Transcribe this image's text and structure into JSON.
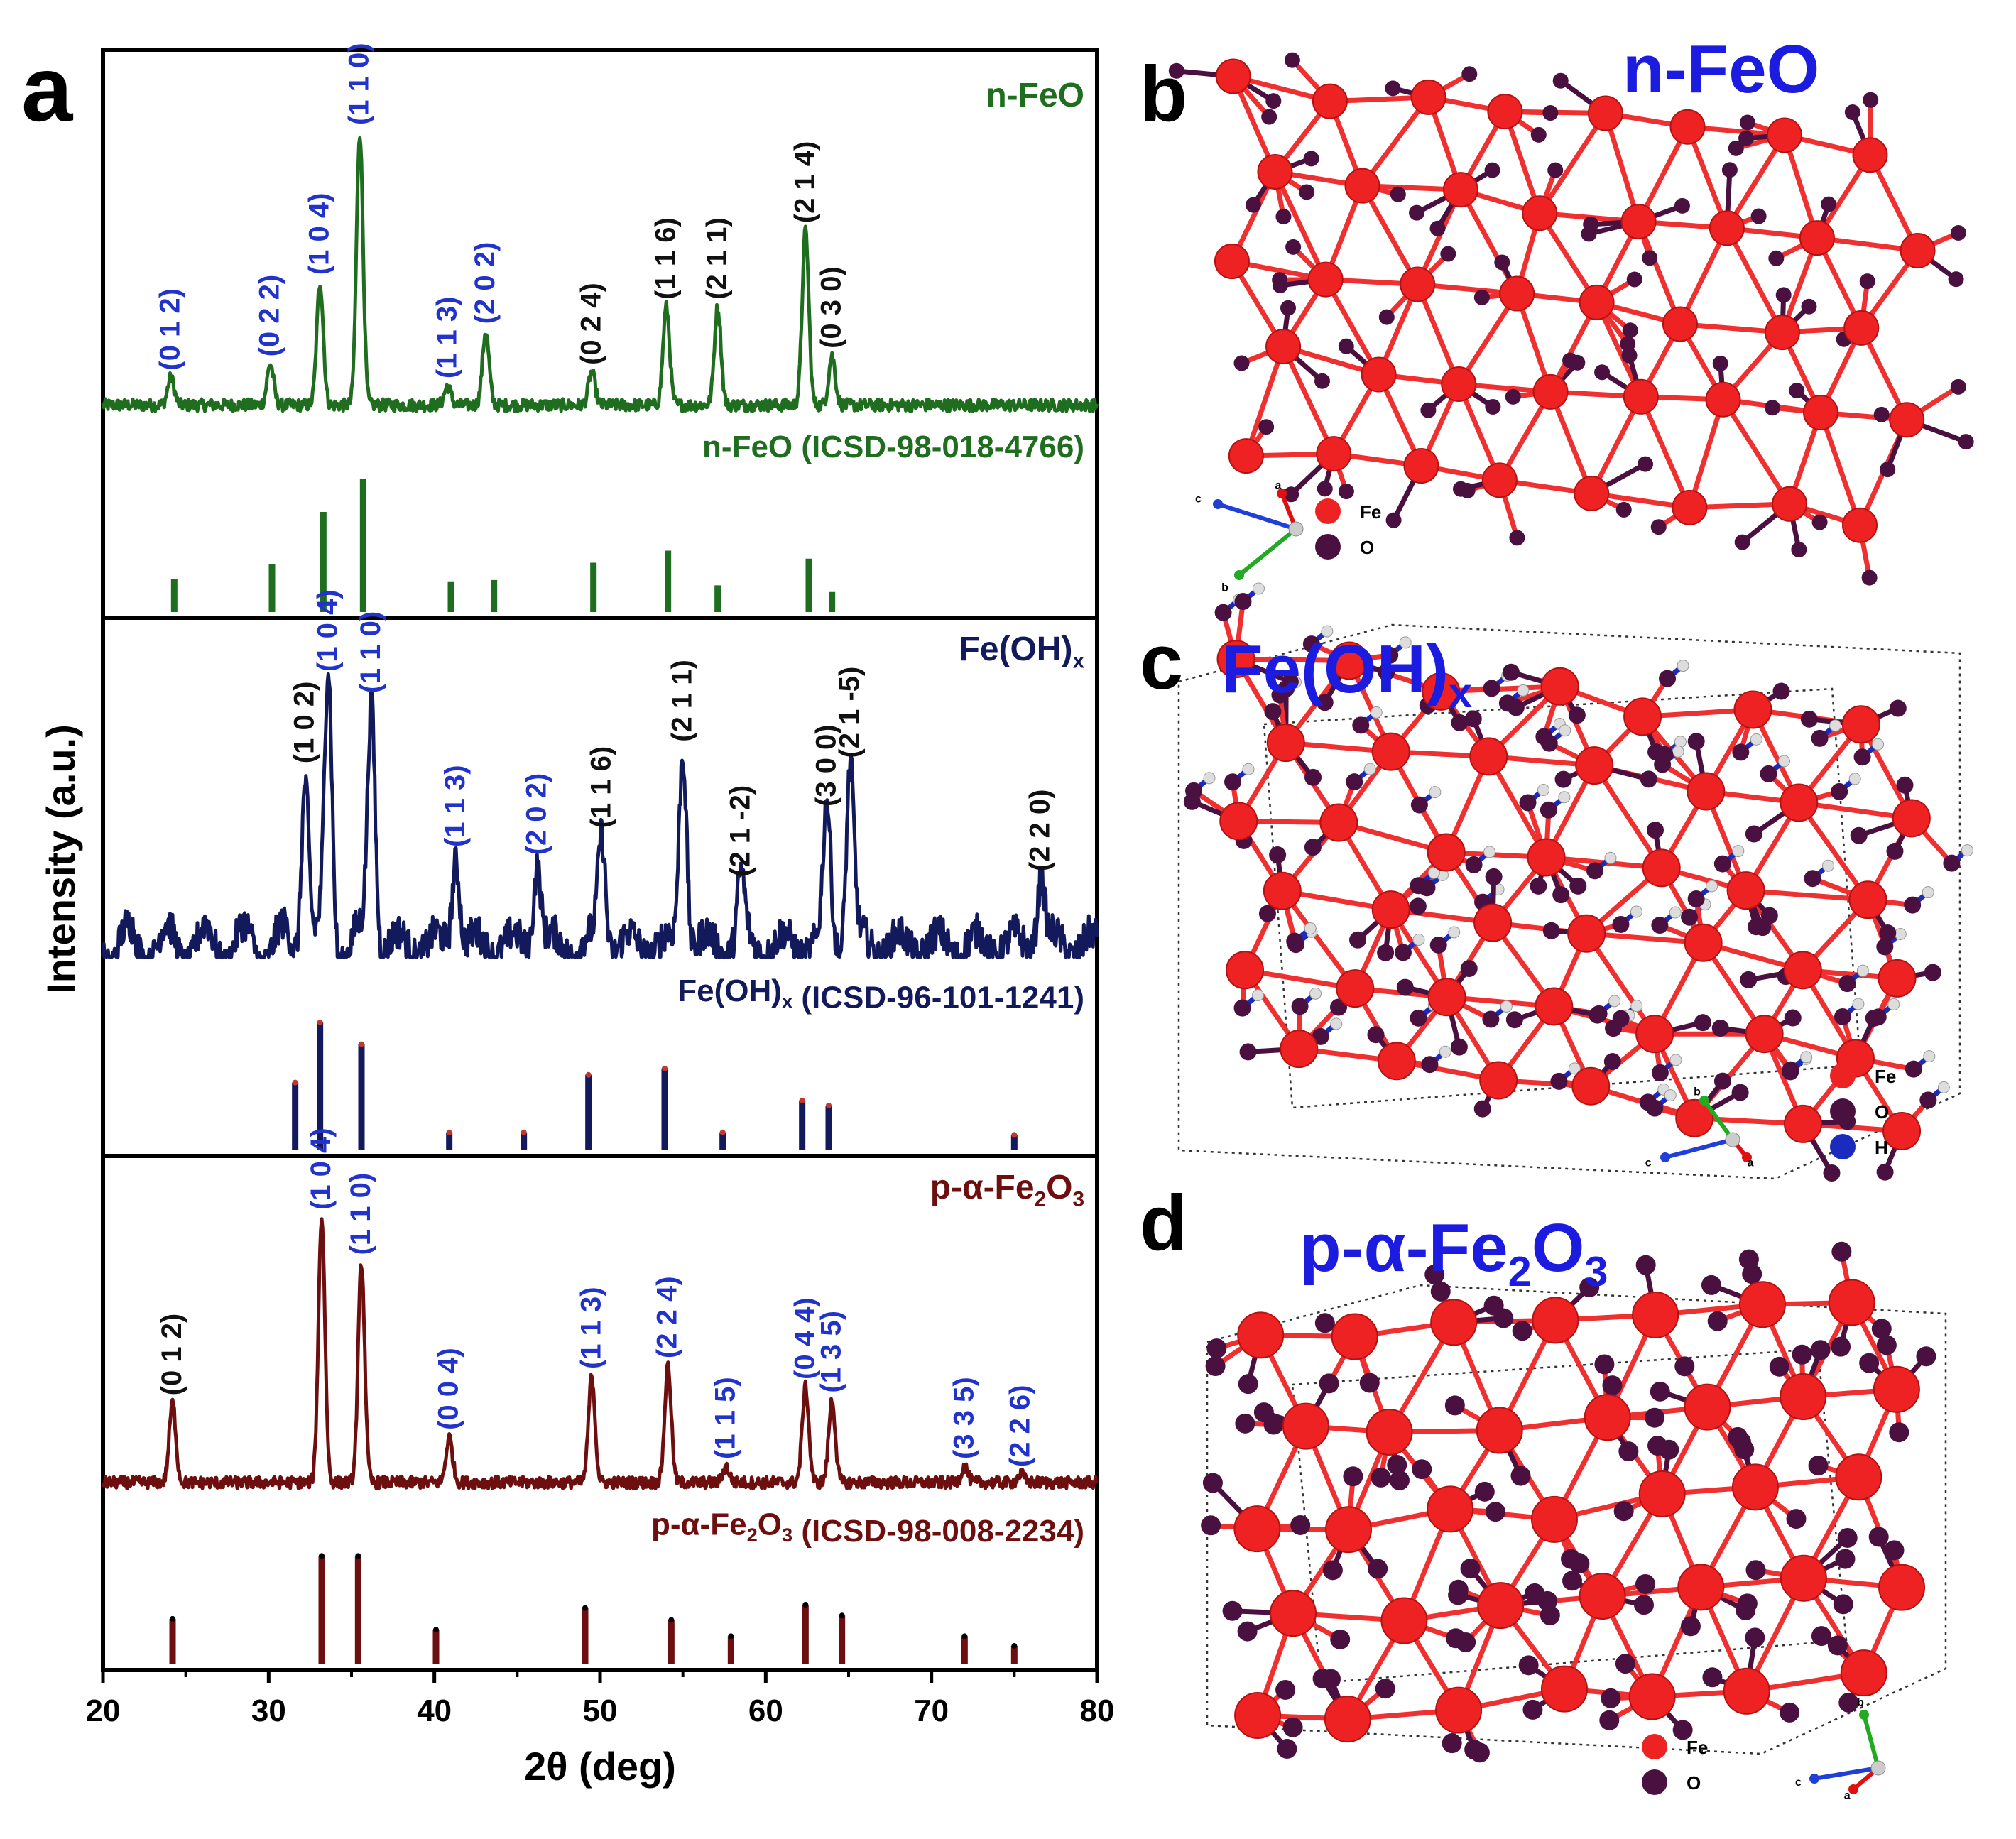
{
  "chart_data": {
    "type": "line",
    "panel_label": "a",
    "xlabel": "2θ (deg)",
    "ylabel": "Intensity (a.u.)",
    "xlim": [
      20,
      80
    ],
    "xticks": [
      "20",
      "30",
      "40",
      "50",
      "60",
      "70",
      "80"
    ],
    "panels": [
      {
        "id": "feo",
        "name": "n-FeO",
        "color": "#1f6e1f",
        "ref_name": "n-FeO (ICSD-98-018-4766)",
        "peaks": [
          {
            "x": 24.1,
            "y": 0.1,
            "label": "(0 1 2)",
            "label_color": "#2233cc"
          },
          {
            "x": 30.1,
            "y": 0.15,
            "label": "(0 2 2)",
            "label_color": "#2233cc"
          },
          {
            "x": 33.1,
            "y": 0.45,
            "label": "(1 0 4)",
            "label_color": "#2233cc"
          },
          {
            "x": 35.5,
            "y": 1.0,
            "label": "(1 1 0)",
            "label_color": "#2233cc"
          },
          {
            "x": 40.8,
            "y": 0.07,
            "label": "(1 1 3)",
            "label_color": "#2233cc"
          },
          {
            "x": 43.1,
            "y": 0.27,
            "label": "(2 0 2)",
            "label_color": "#2233cc"
          },
          {
            "x": 49.5,
            "y": 0.12,
            "label": "(0 2 4)",
            "label_color": "#111111"
          },
          {
            "x": 54.0,
            "y": 0.36,
            "label": "(1 1 6)",
            "label_color": "#111111"
          },
          {
            "x": 57.1,
            "y": 0.36,
            "label": "(2 1 1)",
            "label_color": "#111111"
          },
          {
            "x": 62.4,
            "y": 0.64,
            "label": "(2 1 4)",
            "label_color": "#111111"
          },
          {
            "x": 64.0,
            "y": 0.18,
            "label": "(0 3 0)",
            "label_color": "#111111"
          }
        ],
        "ref_sticks": [
          {
            "x": 24.3,
            "y": 0.25
          },
          {
            "x": 30.2,
            "y": 0.36
          },
          {
            "x": 33.3,
            "y": 0.75
          },
          {
            "x": 35.7,
            "y": 1.0
          },
          {
            "x": 41.0,
            "y": 0.23
          },
          {
            "x": 43.6,
            "y": 0.24
          },
          {
            "x": 49.6,
            "y": 0.37
          },
          {
            "x": 54.1,
            "y": 0.46
          },
          {
            "x": 57.1,
            "y": 0.2
          },
          {
            "x": 62.6,
            "y": 0.4
          },
          {
            "x": 64.0,
            "y": 0.15
          }
        ]
      },
      {
        "id": "feoh",
        "name": "Fe(OH)x",
        "color": "#131a5c",
        "ref_name": "Fe(OH)x (ICSD-96-101-1241)",
        "peaks": [
          {
            "x": 32.2,
            "y": 0.66,
            "label": "(1 0 2)",
            "label_color": "#111111"
          },
          {
            "x": 33.6,
            "y": 1.0,
            "label": "(1 0 4)",
            "label_color": "#2233cc"
          },
          {
            "x": 36.2,
            "y": 0.92,
            "label": "(1 1 0)",
            "label_color": "#2233cc"
          },
          {
            "x": 41.3,
            "y": 0.35,
            "label": "(1 1 3)",
            "label_color": "#2233cc"
          },
          {
            "x": 46.2,
            "y": 0.32,
            "label": "(2 0 2)",
            "label_color": "#2233cc"
          },
          {
            "x": 50.1,
            "y": 0.42,
            "label": "(1 1 6)",
            "label_color": "#111111"
          },
          {
            "x": 55.0,
            "y": 0.74,
            "label": "(2 1 1)",
            "label_color": "#111111"
          },
          {
            "x": 58.5,
            "y": 0.24,
            "label": "(2 1 -2)",
            "label_color": "#111111"
          },
          {
            "x": 63.7,
            "y": 0.5,
            "label": "(3 0 0)",
            "label_color": "#111111"
          },
          {
            "x": 65.1,
            "y": 0.68,
            "label": "(2 1 -5)",
            "label_color": "#111111"
          },
          {
            "x": 76.6,
            "y": 0.26,
            "label": "(2 2 0)",
            "label_color": "#111111"
          }
        ],
        "ref_sticks": [
          {
            "x": 31.6,
            "y": 0.53
          },
          {
            "x": 33.1,
            "y": 1.0
          },
          {
            "x": 35.6,
            "y": 0.83
          },
          {
            "x": 40.9,
            "y": 0.14
          },
          {
            "x": 45.4,
            "y": 0.14
          },
          {
            "x": 49.3,
            "y": 0.59
          },
          {
            "x": 53.9,
            "y": 0.64
          },
          {
            "x": 57.4,
            "y": 0.14
          },
          {
            "x": 62.2,
            "y": 0.39
          },
          {
            "x": 63.8,
            "y": 0.35
          },
          {
            "x": 75.0,
            "y": 0.12
          }
        ]
      },
      {
        "id": "fe2o3",
        "name": "p-α-Fe2O3",
        "color": "#6e0f0f",
        "ref_name": "p-α-Fe2O3 (ICSD-98-008-2234)",
        "peaks": [
          {
            "x": 24.2,
            "y": 0.3,
            "label": "(0 1 2)",
            "label_color": "#111111"
          },
          {
            "x": 33.2,
            "y": 1.0,
            "label": "(1 0 4)",
            "label_color": "#2233cc"
          },
          {
            "x": 35.6,
            "y": 0.83,
            "label": "(1 1 0)",
            "label_color": "#2233cc"
          },
          {
            "x": 40.9,
            "y": 0.17,
            "label": "(0 0 4)",
            "label_color": "#2233cc"
          },
          {
            "x": 49.5,
            "y": 0.4,
            "label": "(1 1 3)",
            "label_color": "#2233cc"
          },
          {
            "x": 54.1,
            "y": 0.44,
            "label": "(2 2 4)",
            "label_color": "#2233cc"
          },
          {
            "x": 57.6,
            "y": 0.06,
            "label": "(1 1 5)",
            "label_color": "#2233cc"
          },
          {
            "x": 62.4,
            "y": 0.36,
            "label": "(0 4 4)",
            "label_color": "#2233cc"
          },
          {
            "x": 64.0,
            "y": 0.31,
            "label": "(1 3 5)",
            "label_color": "#2233cc"
          },
          {
            "x": 72.0,
            "y": 0.06,
            "label": "(3 3 5)",
            "label_color": "#2233cc"
          },
          {
            "x": 75.4,
            "y": 0.03,
            "label": "(2 2 6)",
            "label_color": "#2233cc"
          }
        ],
        "ref_sticks": [
          {
            "x": 24.2,
            "y": 0.42
          },
          {
            "x": 33.2,
            "y": 1.0
          },
          {
            "x": 35.4,
            "y": 1.0
          },
          {
            "x": 40.1,
            "y": 0.32
          },
          {
            "x": 49.1,
            "y": 0.52
          },
          {
            "x": 54.3,
            "y": 0.41
          },
          {
            "x": 57.9,
            "y": 0.26
          },
          {
            "x": 62.4,
            "y": 0.55
          },
          {
            "x": 64.6,
            "y": 0.45
          },
          {
            "x": 72.0,
            "y": 0.26
          },
          {
            "x": 75.0,
            "y": 0.17
          }
        ]
      }
    ]
  },
  "structures": [
    {
      "label": "b",
      "title": "n-FeO",
      "legend": [
        "Fe",
        "O"
      ],
      "axes": [
        "c",
        "a",
        "b"
      ]
    },
    {
      "label": "c",
      "title": "Fe(OH)x",
      "legend": [
        "Fe",
        "O",
        "H"
      ],
      "axes": [
        "b",
        "c",
        "a"
      ]
    },
    {
      "label": "d",
      "title": "p-α-Fe2O3",
      "legend": [
        "Fe",
        "O"
      ],
      "axes": [
        "b",
        "c",
        "a"
      ]
    }
  ],
  "colors": {
    "fe_atom": "#ee2222",
    "o_atom": "#4a1140",
    "h_atom": "#dddddd",
    "bond_fe": "#ee3030",
    "bond_o": "#4a1140",
    "h_bond": "#1a2bbd",
    "title_blue": "#1c1ce0"
  }
}
